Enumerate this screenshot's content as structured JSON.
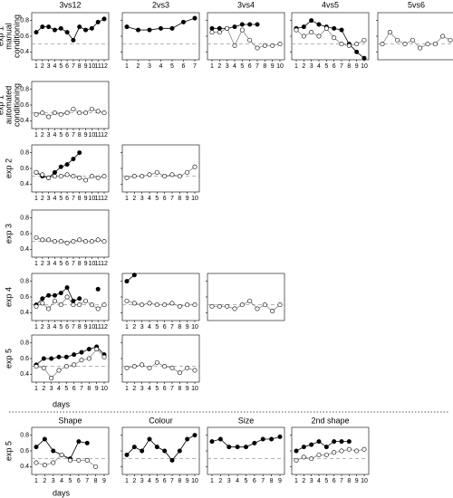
{
  "columns": [
    "3vs12",
    "2vs3",
    "3vs4",
    "4vs5",
    "5vs6"
  ],
  "rows": [
    [
      "exp 1",
      "manual",
      "conditioning"
    ],
    [
      "exp 1",
      "automated",
      "conditioning"
    ],
    [
      "exp 2"
    ],
    [
      "exp 3"
    ],
    [
      "exp 4"
    ],
    [
      "exp 5"
    ],
    [
      "exp 5"
    ]
  ],
  "xlabel": "days",
  "axes": {
    "ylim": [
      0.3,
      0.9
    ],
    "yticks": [
      0.4,
      0.6,
      0.8
    ],
    "chance": 0.5
  },
  "chart_data": [
    {
      "type": "line",
      "categories": [
        1,
        2,
        3,
        4,
        5,
        6,
        7,
        8,
        9,
        10,
        11,
        12
      ],
      "series": [
        {
          "marker": "filled",
          "color": "#000",
          "values": [
            0.65,
            0.72,
            0.72,
            0.68,
            0.7,
            0.65,
            0.55,
            0.72,
            0.68,
            0.7,
            0.78,
            0.82
          ]
        }
      ]
    },
    {
      "type": "line",
      "categories": [
        1,
        2,
        3,
        4,
        5,
        6,
        7
      ],
      "series": [
        {
          "marker": "filled",
          "color": "#000",
          "values": [
            0.72,
            0.68,
            0.68,
            0.7,
            0.7,
            0.78,
            0.83
          ]
        }
      ]
    },
    {
      "type": "line",
      "categories": [
        1,
        2,
        3,
        4,
        5,
        6,
        7,
        8,
        9,
        10
      ],
      "series": [
        {
          "marker": "filled",
          "color": "#000",
          "values": [
            0.7,
            0.7,
            0.7,
            0.72,
            0.75,
            0.75,
            0.75,
            null,
            null,
            null
          ]
        },
        {
          "marker": "open",
          "color": "#888",
          "values": [
            0.65,
            0.65,
            0.7,
            0.48,
            0.68,
            0.55,
            0.45,
            0.48,
            0.48,
            0.5
          ]
        }
      ]
    },
    {
      "type": "line",
      "categories": [
        1,
        2,
        3,
        4,
        5,
        6,
        7,
        8,
        9,
        10
      ],
      "series": [
        {
          "marker": "filled",
          "color": "#000",
          "values": [
            0.7,
            0.72,
            0.8,
            0.75,
            0.72,
            0.7,
            0.68,
            0.5,
            0.4,
            0.32
          ]
        },
        {
          "marker": "open",
          "color": "#888",
          "values": [
            0.68,
            0.6,
            0.65,
            0.6,
            0.7,
            0.58,
            0.5,
            0.48,
            0.5,
            0.55
          ]
        }
      ]
    },
    {
      "type": "line",
      "categories": [
        null,
        null,
        null,
        null,
        null,
        null,
        null,
        null,
        null,
        null
      ],
      "series": [
        {
          "marker": "open",
          "color": "#888",
          "values": [
            0.5,
            0.65,
            0.55,
            0.5,
            0.55,
            0.45,
            0.5,
            0.5,
            0.6,
            0.55
          ]
        }
      ]
    },
    {
      "type": "line",
      "categories": [
        1,
        2,
        3,
        4,
        5,
        6,
        7,
        8,
        9,
        10,
        11,
        12
      ],
      "series": [
        {
          "marker": "open",
          "color": "#888",
          "values": [
            0.48,
            0.5,
            0.45,
            0.5,
            0.48,
            0.5,
            0.55,
            0.5,
            0.5,
            0.55,
            0.52,
            0.5
          ]
        }
      ]
    },
    {
      "type": "line",
      "categories": [
        1,
        2,
        3,
        4,
        5,
        6,
        7,
        8,
        9,
        10,
        11,
        12
      ],
      "series": [
        {
          "marker": "filled",
          "color": "#000",
          "values": [
            0.55,
            0.5,
            0.48,
            0.55,
            0.62,
            0.65,
            0.72,
            0.8,
            null,
            null,
            null,
            null
          ]
        },
        {
          "marker": "open",
          "color": "#888",
          "values": [
            0.55,
            0.52,
            0.48,
            0.5,
            0.5,
            0.52,
            0.5,
            0.48,
            0.45,
            0.5,
            0.48,
            0.5
          ]
        }
      ]
    },
    {
      "type": "line",
      "categories": [
        1,
        2,
        3,
        4,
        5,
        6,
        7,
        8,
        9,
        10
      ],
      "series": [
        {
          "marker": "open",
          "color": "#888",
          "values": [
            0.48,
            0.5,
            0.5,
            0.52,
            0.55,
            0.5,
            0.52,
            0.5,
            0.55,
            0.62
          ]
        }
      ]
    },
    {
      "type": "line",
      "categories": [
        1,
        2,
        3,
        4,
        5,
        6,
        7,
        8,
        9,
        10,
        11,
        12
      ],
      "series": [
        {
          "marker": "open",
          "color": "#888",
          "values": [
            0.55,
            0.52,
            0.52,
            0.5,
            0.5,
            0.48,
            0.5,
            0.52,
            0.5,
            0.5,
            0.52,
            0.5
          ]
        }
      ]
    },
    {
      "type": "line",
      "categories": [
        1,
        2,
        3,
        4,
        5,
        6,
        7,
        8,
        9,
        10,
        11,
        12
      ],
      "series": [
        {
          "marker": "filled",
          "color": "#000",
          "values": [
            0.5,
            0.58,
            0.62,
            0.62,
            0.65,
            0.72,
            0.55,
            0.58,
            null,
            null,
            0.7,
            null
          ]
        },
        {
          "marker": "open",
          "color": "#888",
          "values": [
            0.48,
            0.52,
            0.45,
            0.55,
            0.5,
            0.6,
            0.5,
            0.5,
            0.55,
            0.5,
            0.45,
            0.5
          ]
        }
      ]
    },
    {
      "type": "line",
      "categories": [
        1,
        2,
        3,
        4,
        5,
        6,
        7,
        8,
        9,
        10
      ],
      "series": [
        {
          "marker": "filled",
          "color": "#000",
          "values": [
            0.8,
            0.88,
            null,
            null,
            null,
            null,
            null,
            null,
            null,
            null
          ]
        },
        {
          "marker": "open",
          "color": "#888",
          "values": [
            0.55,
            0.52,
            0.5,
            0.52,
            0.5,
            0.5,
            0.52,
            0.48,
            0.5,
            0.5
          ]
        }
      ]
    },
    {
      "type": "line",
      "categories": [
        null,
        null,
        null,
        null,
        null,
        null,
        null,
        null,
        null,
        null
      ],
      "series": [
        {
          "marker": "open",
          "color": "#888",
          "values": [
            0.48,
            0.48,
            0.48,
            0.45,
            0.5,
            0.55,
            0.45,
            0.5,
            0.42,
            0.5
          ]
        }
      ]
    },
    {
      "type": "line",
      "categories": [
        1,
        2,
        3,
        4,
        5,
        6,
        7,
        8,
        9,
        10
      ],
      "series": [
        {
          "marker": "filled",
          "color": "#000",
          "values": [
            0.52,
            0.6,
            0.6,
            0.62,
            0.62,
            0.65,
            0.68,
            0.72,
            0.75,
            0.65
          ]
        },
        {
          "marker": "open",
          "color": "#888",
          "values": [
            0.5,
            0.48,
            0.35,
            0.45,
            0.5,
            0.52,
            0.58,
            0.6,
            0.72,
            0.62
          ]
        }
      ]
    },
    {
      "type": "line",
      "categories": [
        1,
        2,
        3,
        4,
        5,
        6,
        7,
        8,
        9,
        10
      ],
      "series": [
        {
          "marker": "open",
          "color": "#888",
          "values": [
            0.48,
            0.5,
            0.52,
            0.48,
            0.55,
            0.5,
            0.48,
            0.42,
            0.48,
            0.45
          ]
        }
      ]
    },
    {
      "type": "line",
      "title": "Shape",
      "categories": [
        1,
        2,
        3,
        4,
        5,
        6,
        7,
        8,
        9
      ],
      "series": [
        {
          "marker": "filled",
          "color": "#000",
          "values": [
            0.65,
            0.75,
            0.6,
            0.55,
            0.5,
            0.72,
            0.7,
            null,
            null
          ]
        },
        {
          "marker": "open",
          "color": "#888",
          "values": [
            0.45,
            0.42,
            0.45,
            0.55,
            0.48,
            0.48,
            0.48,
            0.4,
            null
          ]
        }
      ]
    },
    {
      "type": "line",
      "title": "Colour",
      "categories": [
        1,
        2,
        3,
        4,
        5,
        6,
        7,
        8,
        9,
        10
      ],
      "series": [
        {
          "marker": "filled",
          "color": "#000",
          "values": [
            0.55,
            0.65,
            0.6,
            0.75,
            0.65,
            0.6,
            0.48,
            0.6,
            0.75,
            0.8
          ]
        }
      ]
    },
    {
      "type": "line",
      "title": "Size",
      "categories": [
        1,
        2,
        3,
        4,
        5,
        6,
        7,
        8,
        9
      ],
      "series": [
        {
          "marker": "filled",
          "color": "#000",
          "values": [
            0.72,
            0.75,
            0.65,
            0.65,
            0.65,
            0.7,
            0.75,
            0.75,
            0.78
          ]
        }
      ]
    },
    {
      "type": "line",
      "title": "2nd shape",
      "categories": [
        1,
        2,
        3,
        4,
        5,
        6,
        7,
        8,
        9,
        10
      ],
      "series": [
        {
          "marker": "filled",
          "color": "#000",
          "values": [
            0.6,
            0.65,
            0.68,
            0.72,
            0.65,
            0.72,
            0.72,
            0.72,
            null,
            null
          ]
        },
        {
          "marker": "open",
          "color": "#888",
          "values": [
            0.48,
            0.52,
            0.5,
            0.55,
            0.55,
            0.58,
            0.6,
            0.62,
            0.6,
            0.62
          ]
        }
      ]
    }
  ]
}
